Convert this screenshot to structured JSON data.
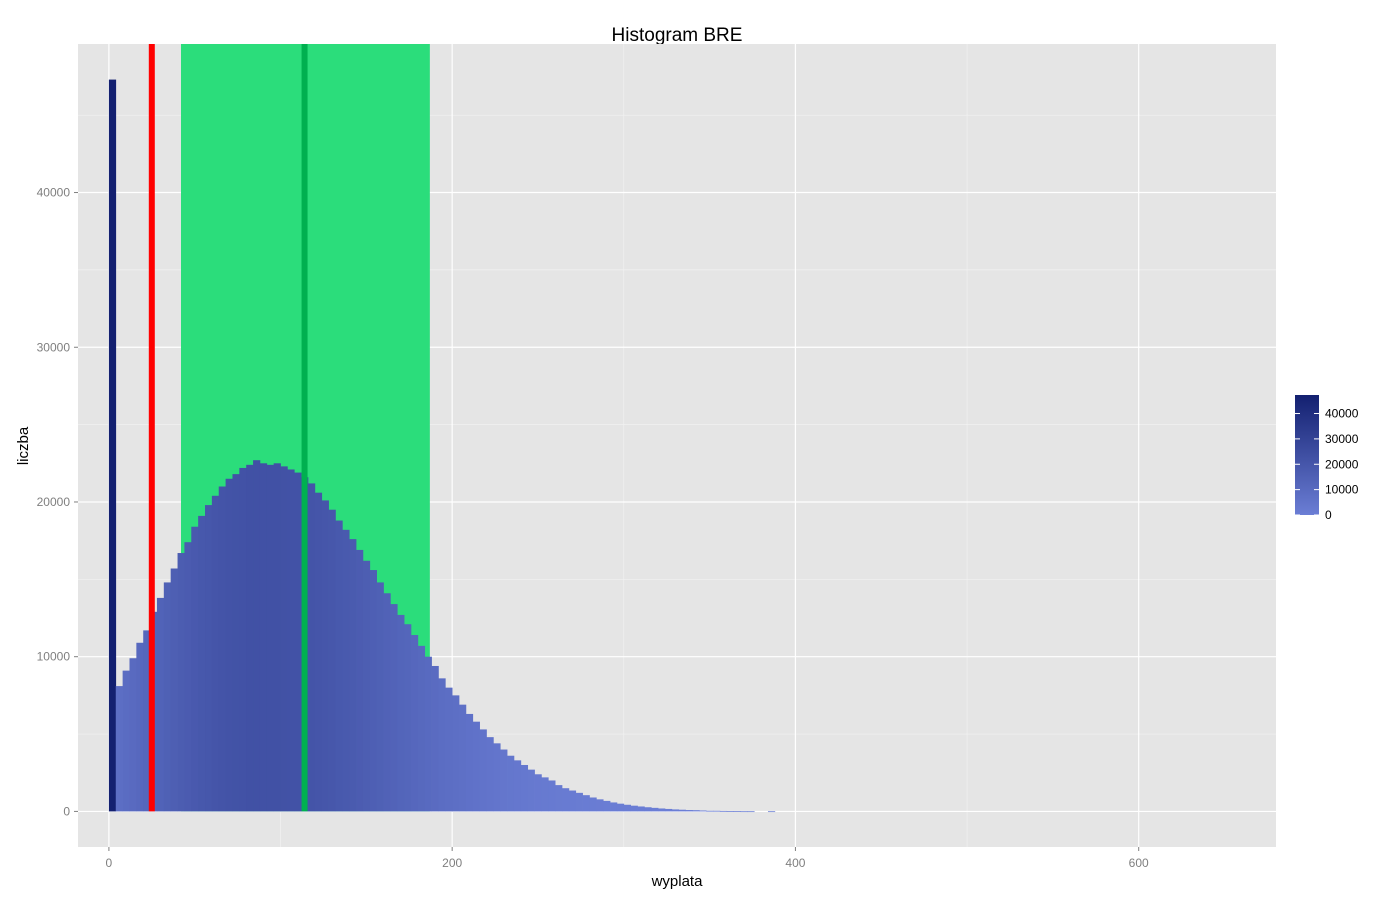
{
  "chart_data": {
    "type": "bar",
    "title": "Histogram BRE",
    "xlabel": "wyplata",
    "ylabel": "liczba",
    "xlim": [
      -18,
      680
    ],
    "ylim": [
      -2300,
      49600
    ],
    "x_ticks": [
      0,
      200,
      400,
      600
    ],
    "y_ticks": [
      0,
      10000,
      20000,
      30000,
      40000
    ],
    "grid": true,
    "bin_start": 0,
    "bin_width": 4,
    "counts": [
      47300,
      8100,
      9100,
      9900,
      10900,
      11700,
      12900,
      13800,
      14800,
      15700,
      16700,
      17400,
      18400,
      19100,
      19800,
      20400,
      21000,
      21500,
      21800,
      22200,
      22400,
      22700,
      22500,
      22400,
      22500,
      22300,
      22100,
      21900,
      21600,
      21200,
      20600,
      20100,
      19500,
      18800,
      18200,
      17600,
      16900,
      16200,
      15600,
      14800,
      14100,
      13400,
      12700,
      12100,
      11400,
      10700,
      10000,
      9400,
      8600,
      8000,
      7500,
      6900,
      6300,
      5800,
      5300,
      4800,
      4400,
      4000,
      3600,
      3300,
      3000,
      2700,
      2400,
      2200,
      2000,
      1700,
      1500,
      1350,
      1200,
      1050,
      900,
      780,
      680,
      580,
      500,
      430,
      370,
      320,
      270,
      230,
      190,
      160,
      130,
      110,
      90,
      80,
      60,
      40,
      40,
      30,
      20,
      20,
      10,
      10,
      0,
      0,
      10,
      0,
      0,
      0,
      0,
      0,
      0,
      0,
      0,
      0,
      0,
      0,
      0,
      0
    ],
    "vlines": [
      {
        "x": 25,
        "color": "#ff0000"
      },
      {
        "x": 114,
        "color": "#00b050"
      }
    ],
    "band": {
      "x_from": 42,
      "x_to": 187,
      "color": "#2bdd7b"
    },
    "fill_scale": {
      "low_color": "#6b7ed5",
      "high_color": "#132070",
      "min": 0,
      "max": 47300,
      "breaks": [
        0,
        10000,
        20000,
        30000,
        40000
      ],
      "break_labels": [
        "0",
        "10000",
        "20000",
        "30000",
        "40000"
      ]
    }
  }
}
